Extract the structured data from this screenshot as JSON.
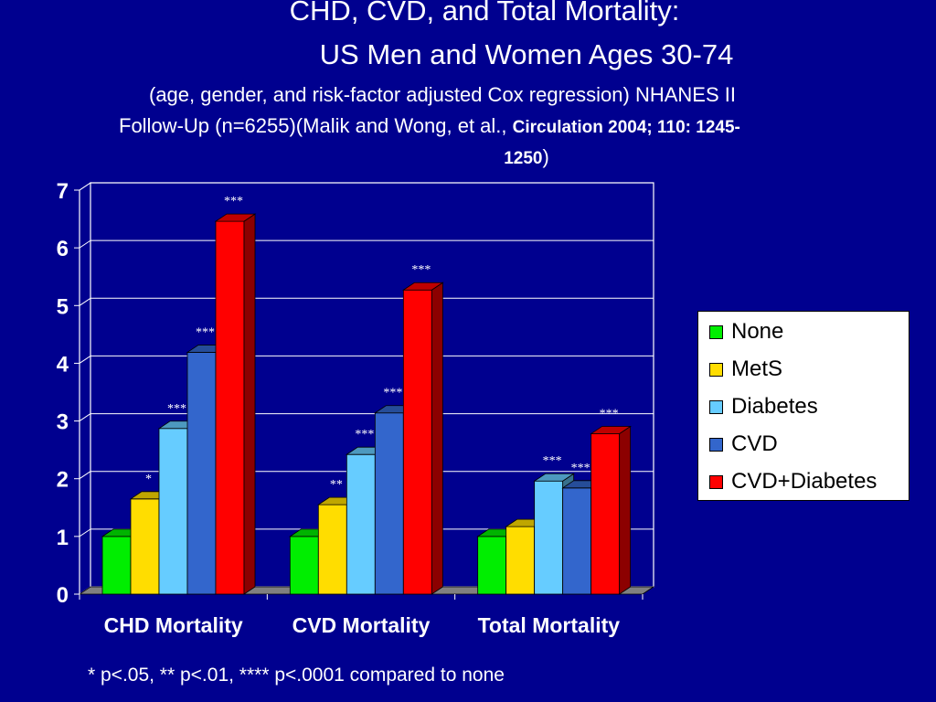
{
  "slide": {
    "title_line1": "CHD, CVD, and Total Mortality:",
    "title_line2": "US Men and Women Ages 30-74",
    "subtitle_line1": "(age, gender, and risk-factor adjusted Cox regression) NHANES II",
    "subtitle_line2_prefix": "Follow-Up (n=6255)(Malik and Wong, et al., ",
    "subtitle_line2_cite": "Circulation 2004; 110: 1245-",
    "subtitle_line3_cite": "1250",
    "subtitle_line3_suffix": ")",
    "footnote": "* p<.05, ** p<.01, **** p<.0001 compared to none",
    "background_color": "#00008f"
  },
  "chart_data": {
    "type": "bar",
    "style": "3d-clustered",
    "title": "",
    "xlabel": "",
    "ylabel": "",
    "ylim": [
      0,
      7
    ],
    "yticks": [
      "0",
      "1",
      "2",
      "3",
      "4",
      "5",
      "6",
      "7"
    ],
    "grid": true,
    "legend_position": "right",
    "categories": [
      "CHD Mortality",
      "CVD Mortality",
      "Total Mortality"
    ],
    "series": [
      {
        "name": "None",
        "color": "#00ee00",
        "values": [
          1.0,
          1.0,
          1.0
        ],
        "annotations": [
          "",
          "",
          ""
        ]
      },
      {
        "name": "MetS",
        "color": "#ffdd00",
        "values": [
          1.65,
          1.55,
          1.17
        ],
        "annotations": [
          "*",
          "**",
          ""
        ]
      },
      {
        "name": "Diabetes",
        "color": "#66ccff",
        "values": [
          2.87,
          2.42,
          1.96
        ],
        "annotations": [
          "***",
          "***",
          "***"
        ]
      },
      {
        "name": "CVD",
        "color": "#3366cc",
        "values": [
          4.19,
          3.14,
          1.84
        ],
        "annotations": [
          "***",
          "***",
          "***"
        ]
      },
      {
        "name": "CVD+Diabetes",
        "color": "#ff0000",
        "values": [
          6.46,
          5.27,
          2.78
        ],
        "annotations": [
          "***",
          "***",
          "***"
        ]
      }
    ]
  }
}
